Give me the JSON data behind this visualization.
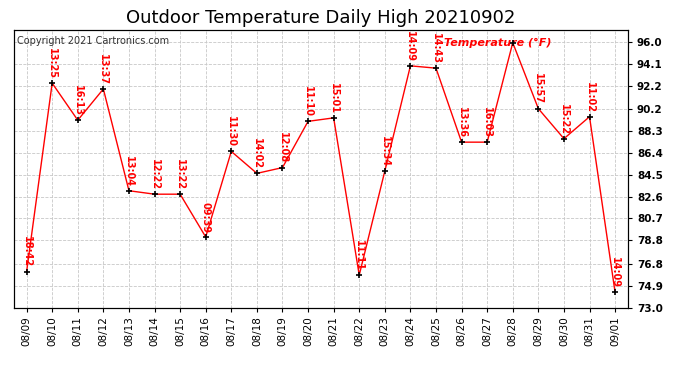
{
  "title": "Outdoor Temperature Daily High 20210902",
  "copyright": "Copyright 2021 Cartronics.com",
  "ylabel": "Temperature (°F)",
  "background_color": "#ffffff",
  "grid_color": "#c8c8c8",
  "line_color": "#ff0000",
  "marker_color": "#000000",
  "label_color": "#ff0000",
  "ylim": [
    73.0,
    97.0
  ],
  "yticks": [
    73.0,
    74.9,
    76.8,
    78.8,
    80.7,
    82.6,
    84.5,
    86.4,
    88.3,
    90.2,
    92.2,
    94.1,
    96.0
  ],
  "dates": [
    "08/09",
    "08/10",
    "08/11",
    "08/12",
    "08/13",
    "08/14",
    "08/15",
    "08/16",
    "08/17",
    "08/18",
    "08/19",
    "08/20",
    "08/21",
    "08/22",
    "08/23",
    "08/24",
    "08/25",
    "08/26",
    "08/27",
    "08/28",
    "08/29",
    "08/30",
    "08/31",
    "09/01"
  ],
  "temps": [
    76.1,
    92.4,
    89.2,
    91.9,
    83.1,
    82.8,
    82.8,
    79.1,
    86.5,
    84.6,
    85.1,
    89.1,
    89.4,
    75.8,
    84.8,
    93.9,
    93.7,
    87.3,
    87.3,
    95.9,
    90.2,
    87.6,
    89.5,
    74.3
  ],
  "time_labels": [
    "18:42",
    "13:25",
    "16:13",
    "13:37",
    "13:04",
    "12:22",
    "13:22",
    "09:39",
    "11:30",
    "14:02",
    "12:08",
    "11:10",
    "15:01",
    "11:11",
    "15:34",
    "14:09",
    "14:43",
    "13:36",
    "16:03",
    "",
    "15:57",
    "15:22",
    "11:02",
    "14:09"
  ],
  "title_fontsize": 13,
  "annot_fontsize": 7,
  "tick_fontsize": 7.5,
  "ylabel_fontsize": 9,
  "copyright_fontsize": 7
}
